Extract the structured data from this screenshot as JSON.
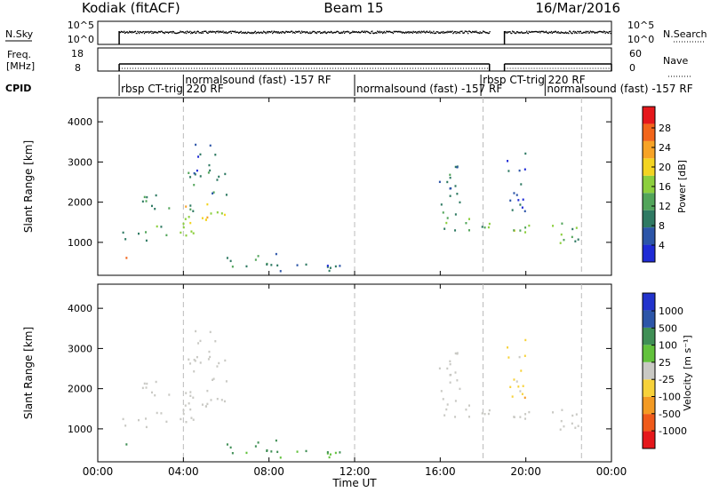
{
  "header": {
    "radar": "Kodiak (fitACF)",
    "beam": "Beam 15",
    "date": "16/Mar/2016"
  },
  "nsky_panel": {
    "left_label": "N.Sky",
    "right_label": "N.Search",
    "left_ticks": [
      "10^5",
      "10^0"
    ],
    "right_ticks": [
      "10^5",
      "10^0"
    ]
  },
  "freq_panel": {
    "left_label_1": "Freq.",
    "left_label_2": "[MHz]",
    "right_label": "Nave",
    "left_ticks": [
      "18",
      "8"
    ],
    "right_ticks": [
      "60",
      "0"
    ]
  },
  "cpid": {
    "label": "CPID",
    "segments": [
      {
        "x": 1.0,
        "text": "rbsp CT-trig 220 RF"
      },
      {
        "x": 4.0,
        "text": "normalsound (fast) -157 RF"
      },
      {
        "x": 12.0,
        "text": "normalsound (fast) -157 RF"
      },
      {
        "x": 17.9,
        "text": "rbsp CT-trig 220 RF"
      },
      {
        "x": 20.9,
        "text": "normalsound (fast) -157 RF"
      }
    ]
  },
  "time_axis": {
    "label": "Time UT",
    "ticks": [
      "00:00",
      "04:00",
      "08:00",
      "12:00",
      "16:00",
      "20:00",
      "00:00"
    ]
  },
  "power_panel": {
    "ylabel": "Slant Range [km]",
    "yticks": [
      "1000",
      "2000",
      "3000",
      "4000"
    ],
    "colorbar_title": "Power [dB]",
    "colorbar_ticks": [
      "28",
      "24",
      "20",
      "16",
      "12",
      "8",
      "4"
    ],
    "colors": [
      "#1f2bd6",
      "#2c55a8",
      "#2f7a63",
      "#52a55a",
      "#8ccf3d",
      "#f3d421",
      "#f7a326",
      "#f2651a",
      "#e5171b"
    ]
  },
  "velocity_panel": {
    "ylabel": "Slant Range [km]",
    "yticks": [
      "1000",
      "2000",
      "3000",
      "4000"
    ],
    "colorbar_title": "Velocity [m s⁻¹]",
    "colorbar_ticks": [
      "1000",
      "500",
      "100",
      "25",
      "-25",
      "-100",
      "-500",
      "-1000"
    ],
    "colors": [
      "#2233cc",
      "#2c55a8",
      "#3f8f55",
      "#62c23c",
      "#c9c9c4",
      "#f7d23a",
      "#f39a23",
      "#ef5a1a",
      "#e5171b"
    ]
  },
  "chart_data": {
    "type": "heatmap",
    "x_units": "hours UT",
    "y_units": "slant range km",
    "xlim": [
      0,
      24
    ],
    "ylim": [
      180,
      4600
    ],
    "scatter_regions": [
      {
        "t0": 1.0,
        "t1": 2.5,
        "r0": 1050,
        "r1": 1350,
        "power": 10,
        "vel": 0
      },
      {
        "t0": 2.5,
        "t1": 4.8,
        "r0": 1150,
        "r1": 1500,
        "power": 14,
        "vel": 0
      },
      {
        "t0": 4.0,
        "t1": 6.3,
        "r0": 1500,
        "r1": 2000,
        "power": 18,
        "vel": 0
      },
      {
        "t0": 2.0,
        "t1": 4.5,
        "r0": 1800,
        "r1": 2200,
        "power": 10,
        "vel": 0
      },
      {
        "t0": 4.0,
        "t1": 6.0,
        "r0": 2200,
        "r1": 2800,
        "power": 10,
        "vel": 0
      },
      {
        "t0": 4.5,
        "t1": 5.5,
        "r0": 2800,
        "r1": 3500,
        "power": 6,
        "vel": 0
      },
      {
        "t0": 1.0,
        "t1": 1.4,
        "r0": 500,
        "r1": 700,
        "power": 26,
        "vel": 80
      },
      {
        "t0": 6.0,
        "t1": 8.5,
        "r0": 400,
        "r1": 750,
        "power": 10,
        "vel": 150
      },
      {
        "t0": 8.0,
        "t1": 11.5,
        "r0": 250,
        "r1": 500,
        "power": 6,
        "vel": 120
      },
      {
        "t0": 15.9,
        "t1": 18.3,
        "r0": 1300,
        "r1": 1700,
        "power": 13,
        "vel": 0
      },
      {
        "t0": 15.9,
        "t1": 17.0,
        "r0": 1700,
        "r1": 3000,
        "power": 8,
        "vel": 0
      },
      {
        "t0": 19.0,
        "t1": 22.6,
        "r0": 1250,
        "r1": 1500,
        "power": 14,
        "vel": 0
      },
      {
        "t0": 21.5,
        "t1": 23.6,
        "r0": 1000,
        "r1": 1250,
        "power": 12,
        "vel": 0
      },
      {
        "t0": 19.1,
        "t1": 20.0,
        "r0": 1800,
        "r1": 3300,
        "power": 6,
        "vel": -60
      }
    ]
  }
}
